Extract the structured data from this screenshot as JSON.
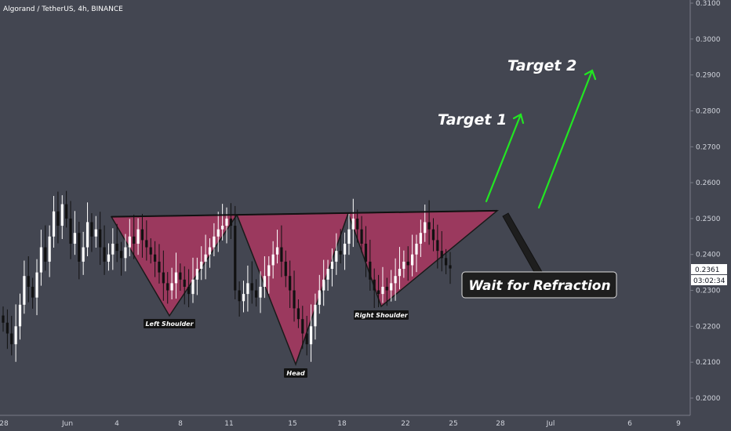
{
  "header": {
    "title": "Algorand / TetherUS, 4h, BINANCE"
  },
  "price_tag": {
    "value": "0.2361",
    "countdown": "03:02:34"
  },
  "chart_data": {
    "type": "candlestick",
    "symbol": "Algorand / TetherUS",
    "interval": "4h",
    "exchange": "BINANCE",
    "y_ticks": [
      0.2,
      0.21,
      0.22,
      0.23,
      0.24,
      0.25,
      0.26,
      0.27,
      0.28,
      0.29,
      0.3,
      0.31
    ],
    "y_tick_labels": [
      "0.2000",
      "0.2100",
      "0.2200",
      "0.2300",
      "0.2400",
      "0.2500",
      "0.2600",
      "0.2700",
      "0.2800",
      "0.2900",
      "0.3000",
      "0.3100"
    ],
    "x_tick_labels": [
      "28",
      "Jun",
      "4",
      "8",
      "11",
      "15",
      "18",
      "22",
      "25",
      "28",
      "Jul",
      "6",
      "9"
    ],
    "last_price": 0.2361,
    "candles_close": [
      0.221,
      0.218,
      0.215,
      0.22,
      0.226,
      0.234,
      0.231,
      0.228,
      0.235,
      0.242,
      0.238,
      0.245,
      0.252,
      0.248,
      0.254,
      0.25,
      0.243,
      0.246,
      0.238,
      0.242,
      0.249,
      0.245,
      0.247,
      0.242,
      0.238,
      0.24,
      0.243,
      0.241,
      0.239,
      0.242,
      0.245,
      0.243,
      0.247,
      0.244,
      0.242,
      0.24,
      0.238,
      0.235,
      0.232,
      0.23,
      0.232,
      0.235,
      0.233,
      0.231,
      0.229,
      0.233,
      0.236,
      0.238,
      0.24,
      0.242,
      0.245,
      0.247,
      0.248,
      0.25,
      0.248,
      0.23,
      0.227,
      0.229,
      0.232,
      0.23,
      0.228,
      0.231,
      0.234,
      0.237,
      0.24,
      0.242,
      0.238,
      0.234,
      0.23,
      0.225,
      0.222,
      0.218,
      0.215,
      0.22,
      0.226,
      0.23,
      0.233,
      0.236,
      0.238,
      0.241,
      0.24,
      0.243,
      0.247,
      0.25,
      0.247,
      0.243,
      0.238,
      0.233,
      0.23,
      0.229,
      0.231,
      0.23,
      0.232,
      0.234,
      0.236,
      0.238,
      0.237,
      0.24,
      0.243,
      0.246,
      0.249,
      0.247,
      0.244,
      0.241,
      0.239,
      0.237,
      0.2361
    ],
    "pattern": {
      "left_shoulder": "Left Shoulder",
      "head": "Head",
      "right_shoulder": "Right Shoulder",
      "neckline": [
        0.2505,
        0.2522
      ]
    },
    "annotations": {
      "target1": "Target 1",
      "target2": "Target 2",
      "wait": "Wait for Refraction"
    },
    "colors": {
      "bg": "#434651",
      "triangle": "#a5375f",
      "target_arrow": "#00e600",
      "wait_box": "#1e1e1e"
    }
  }
}
